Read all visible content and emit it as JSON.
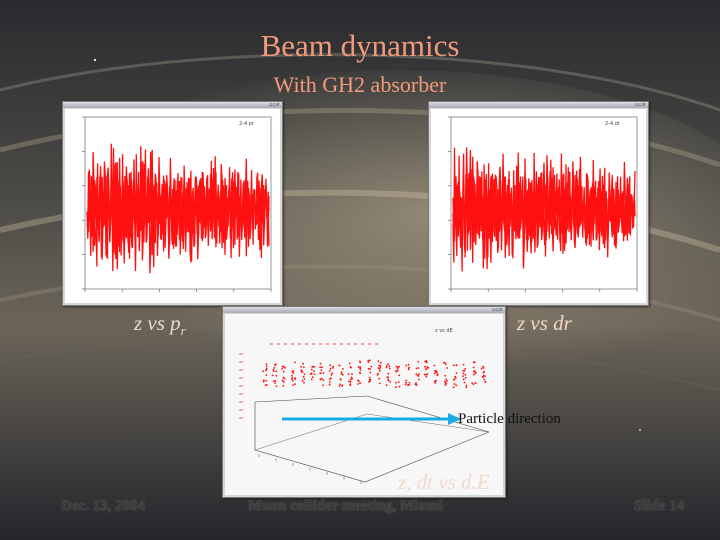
{
  "colors": {
    "title": "#f29a7c",
    "caption": "#f0d8cc",
    "trace": "#ff1010",
    "arrow": "#19a9e6",
    "footer": "#3a3a3a"
  },
  "title": {
    "line1": "Beam dynamics",
    "line2": "With GH2 absorber"
  },
  "plots": {
    "left": {
      "caption": "z vs p",
      "caption_sub": "r",
      "legend": "2-4 pr"
    },
    "right": {
      "caption": "z vs dr",
      "legend": "2-4 dr"
    },
    "bottom": {
      "caption": "z, dt vs d.E",
      "legend": "z vs dE"
    }
  },
  "annotation": {
    "label": "Particle direction"
  },
  "footer": {
    "date": "Dec. 13, 2004",
    "event": "Muon collider meeting, Miami",
    "slide": "Slide 14"
  },
  "icons": [
    "window-controls-icon",
    "arrow-right-icon"
  ]
}
